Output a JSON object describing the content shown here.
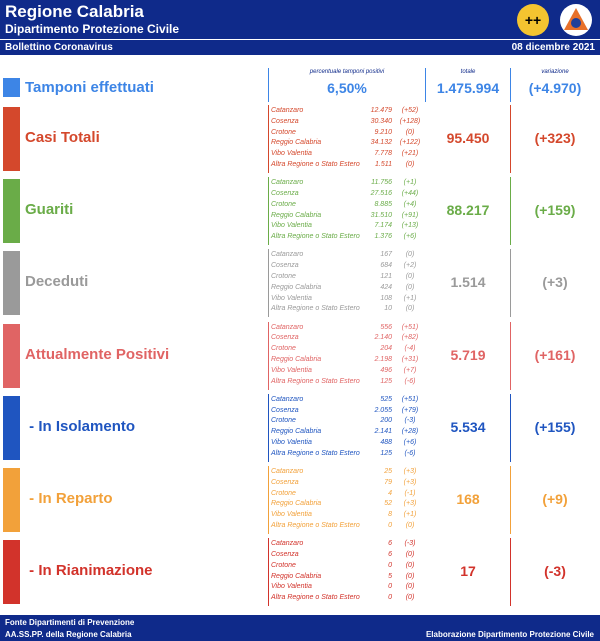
{
  "header": {
    "title": "Regione Calabria",
    "subtitle": "Dipartimento Protezione Civile",
    "bulletin": "Bollettino Coronavirus",
    "date": "08 dicembre 2021"
  },
  "tamponi": {
    "label": "Tamponi effettuati",
    "color": "#3d85e6",
    "pct_label": "percentuale tamponi positivi",
    "pct": "6,50%",
    "total_label": "totale",
    "total": "1.475.994",
    "variation_label": "variazione",
    "variation": "(+4.970)"
  },
  "sections": [
    {
      "label": "Casi Totali",
      "color": "#d4482c",
      "rows": [
        [
          "Catanzaro",
          "12.479",
          "(+52)"
        ],
        [
          "Cosenza",
          "30.340",
          "(+128)"
        ],
        [
          "Crotone",
          "9.210",
          "(0)"
        ],
        [
          "Reggio Calabria",
          "34.132",
          "(+122)"
        ],
        [
          "Vibo Valentia",
          "7.778",
          "(+21)"
        ],
        [
          "Altra Regione o Stato Estero",
          "1.511",
          "(0)"
        ]
      ],
      "total": "95.450",
      "variation": "(+323)"
    },
    {
      "label": "Guariti",
      "color": "#6aac48",
      "rows": [
        [
          "Catanzaro",
          "11.756",
          "(+1)"
        ],
        [
          "Cosenza",
          "27.516",
          "(+44)"
        ],
        [
          "Crotone",
          "8.885",
          "(+4)"
        ],
        [
          "Reggio Calabria",
          "31.510",
          "(+91)"
        ],
        [
          "Vibo Valentia",
          "7.174",
          "(+13)"
        ],
        [
          "Altra Regione o Stato Estero",
          "1.376",
          "(+6)"
        ]
      ],
      "total": "88.217",
      "variation": "(+159)"
    },
    {
      "label": "Deceduti",
      "color": "#9a9a9a",
      "rows": [
        [
          "Catanzaro",
          "167",
          "(0)"
        ],
        [
          "Cosenza",
          "684",
          "(+2)"
        ],
        [
          "Crotone",
          "121",
          "(0)"
        ],
        [
          "Reggio Calabria",
          "424",
          "(0)"
        ],
        [
          "Vibo Valentia",
          "108",
          "(+1)"
        ],
        [
          "Altra Regione o Stato Estero",
          "10",
          "(0)"
        ]
      ],
      "total": "1.514",
      "variation": "(+3)"
    },
    {
      "label": "Attualmente Positivi",
      "color": "#e06464",
      "rows": [
        [
          "Catanzaro",
          "556",
          "(+51)"
        ],
        [
          "Cosenza",
          "2.140",
          "(+82)"
        ],
        [
          "Crotone",
          "204",
          "(-4)"
        ],
        [
          "Reggio Calabria",
          "2.198",
          "(+31)"
        ],
        [
          "Vibo Valentia",
          "496",
          "(+7)"
        ],
        [
          "Altra Regione o Stato Estero",
          "125",
          "(-6)"
        ]
      ],
      "total": "5.719",
      "variation": "(+161)"
    },
    {
      "label": " - In Isolamento",
      "color": "#1f55c0",
      "rows": [
        [
          "Catanzaro",
          "525",
          "(+51)"
        ],
        [
          "Cosenza",
          "2.055",
          "(+79)"
        ],
        [
          "Crotone",
          "200",
          "(-3)"
        ],
        [
          "Reggio Calabria",
          "2.141",
          "(+28)"
        ],
        [
          "Vibo Valentia",
          "488",
          "(+6)"
        ],
        [
          "Altra Regione o Stato Estero",
          "125",
          "(-6)"
        ]
      ],
      "total": "5.534",
      "variation": "(+155)"
    },
    {
      "label": " - In Reparto",
      "color": "#f2a13a",
      "rows": [
        [
          "Catanzaro",
          "25",
          "(+3)"
        ],
        [
          "Cosenza",
          "79",
          "(+3)"
        ],
        [
          "Crotone",
          "4",
          "(-1)"
        ],
        [
          "Reggio Calabria",
          "52",
          "(+3)"
        ],
        [
          "Vibo Valentia",
          "8",
          "(+1)"
        ],
        [
          "Altra Regione o Stato Estero",
          "0",
          "(0)"
        ]
      ],
      "total": "168",
      "variation": "(+9)"
    },
    {
      "label": " - In Rianimazione",
      "color": "#d2332b",
      "rows": [
        [
          "Catanzaro",
          "6",
          "(-3)"
        ],
        [
          "Cosenza",
          "6",
          "(0)"
        ],
        [
          "Crotone",
          "0",
          "(0)"
        ],
        [
          "Reggio Calabria",
          "5",
          "(0)"
        ],
        [
          "Vibo Valentia",
          "0",
          "(0)"
        ],
        [
          "Altra Regione o Stato Estero",
          "0",
          "(0)"
        ]
      ],
      "total": "17",
      "variation": "(-3)"
    }
  ],
  "footer": {
    "left": [
      "Fonte Dipartimenti di Prevenzione",
      "AA.SS.PP. della Regione Calabria"
    ],
    "right": "Elaborazione Dipartimento Protezione Civile"
  }
}
